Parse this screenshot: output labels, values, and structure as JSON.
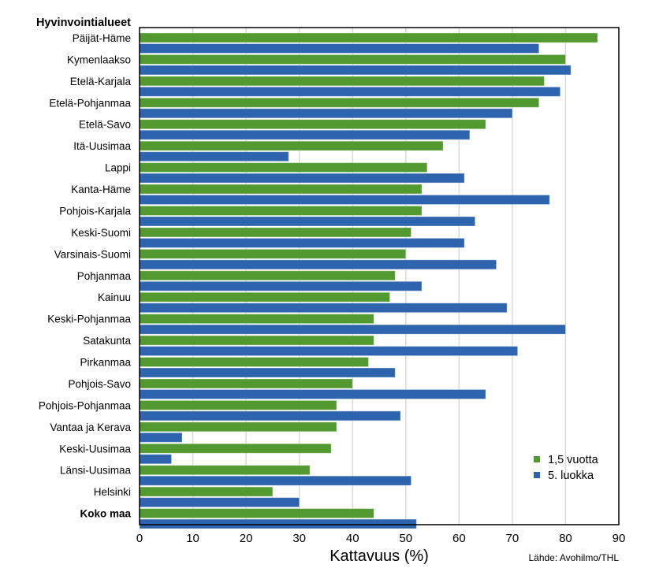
{
  "chart_data": {
    "type": "bar",
    "orientation": "horizontal",
    "category_header": "Hyvinvointialueet",
    "categories": [
      "Päijät-Häme",
      "Kymenlaakso",
      "Etelä-Karjala",
      "Etelä-Pohjanmaa",
      "Etelä-Savo",
      "Itä-Uusimaa",
      "Lappi",
      "Kanta-Häme",
      "Pohjois-Karjala",
      "Keski-Suomi",
      "Varsinais-Suomi",
      "Pohjanmaa",
      "Kainuu",
      "Keski-Pohjanmaa",
      "Satakunta",
      "Pirkanmaa",
      "Pohjois-Savo",
      "Pohjois-Pohjanmaa",
      "Vantaa ja Kerava",
      "Keski-Uusimaa",
      "Länsi-Uusimaa",
      "Helsinki",
      "Koko maa"
    ],
    "bold_categories": [
      "Koko maa"
    ],
    "series": [
      {
        "name": "1,5 vuotta",
        "color": "#529a2f",
        "values": [
          86,
          80,
          76,
          75,
          65,
          57,
          54,
          53,
          53,
          51,
          50,
          48,
          47,
          44,
          44,
          43,
          40,
          37,
          37,
          36,
          32,
          25,
          44
        ]
      },
      {
        "name": "5. luokka",
        "color": "#2e63ae",
        "values": [
          75,
          81,
          79,
          70,
          62,
          28,
          61,
          77,
          63,
          61,
          67,
          53,
          69,
          80,
          71,
          48,
          65,
          49,
          8,
          6,
          51,
          30,
          52
        ]
      }
    ],
    "xlabel": "Kattavuus (%)",
    "ylabel": "",
    "xlim": [
      0,
      90
    ],
    "xticks": [
      0,
      10,
      20,
      30,
      40,
      50,
      60,
      70,
      80,
      90
    ],
    "grid": true,
    "legend_position": "bottom-right",
    "source": "Lähde: Avohilmo/THL"
  }
}
